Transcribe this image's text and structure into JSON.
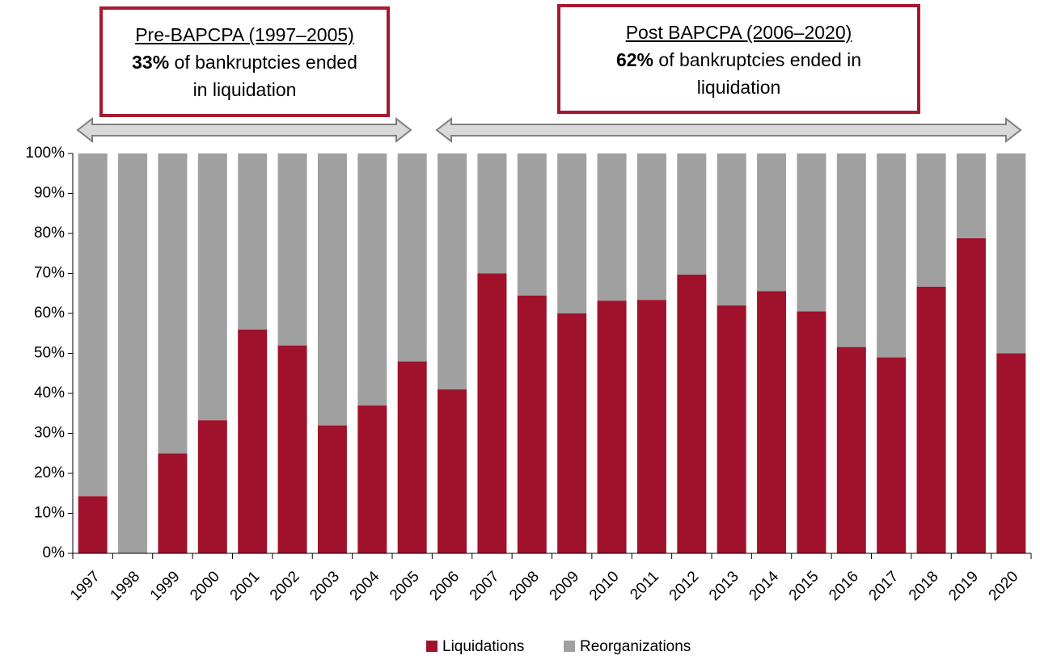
{
  "chart_data": {
    "type": "stacked_bar",
    "categories": [
      "1997",
      "1998",
      "1999",
      "2000",
      "2001",
      "2002",
      "2003",
      "2004",
      "2005",
      "2006",
      "2007",
      "2008",
      "2009",
      "2010",
      "2011",
      "2012",
      "2013",
      "2014",
      "2015",
      "2016",
      "2017",
      "2018",
      "2019",
      "2020"
    ],
    "series": [
      {
        "name": "Liquidations",
        "color": "#a0122c",
        "values": [
          14.3,
          0,
          25,
          33.3,
          56,
          52,
          32,
          37,
          48,
          41,
          70,
          64.5,
          60,
          63.2,
          63.4,
          69.7,
          62,
          65.6,
          60.5,
          51.6,
          49,
          66.7,
          78.8,
          50
        ]
      },
      {
        "name": "Reorganizations",
        "color": "#a0a0a0",
        "values": [
          85.7,
          100,
          75,
          66.7,
          44,
          48,
          68,
          63,
          52,
          59,
          30,
          35.5,
          40,
          36.8,
          36.6,
          30.3,
          38,
          34.4,
          39.5,
          48.4,
          51,
          33.3,
          21.2,
          50
        ]
      }
    ],
    "ylim": [
      0,
      100
    ],
    "yticks": [
      {
        "value": 0,
        "label": "0%"
      },
      {
        "value": 10,
        "label": "10%"
      },
      {
        "value": 20,
        "label": "20%"
      },
      {
        "value": 30,
        "label": "30%"
      },
      {
        "value": 40,
        "label": "40%"
      },
      {
        "value": 50,
        "label": "50%"
      },
      {
        "value": 60,
        "label": "60%"
      },
      {
        "value": 70,
        "label": "70%"
      },
      {
        "value": 80,
        "label": "80%"
      },
      {
        "value": 90,
        "label": "90%"
      },
      {
        "value": 100,
        "label": "100%"
      }
    ]
  },
  "annotations": [
    {
      "title": "Pre-BAPCPA (1997–2005)",
      "highlight": "33%",
      "lines": [
        "of bankruptcies ended",
        "in liquidation"
      ]
    },
    {
      "title": "Post BAPCPA (2006–2020)",
      "highlight": "62%",
      "lines": [
        "of bankruptcies ended in",
        "liquidation"
      ]
    }
  ]
}
